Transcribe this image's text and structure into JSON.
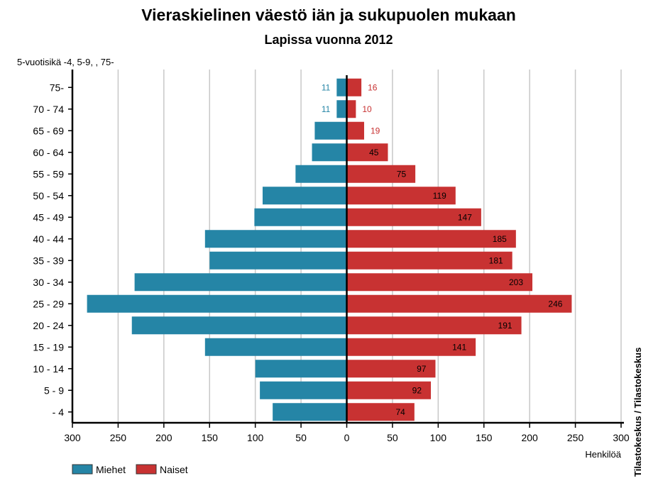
{
  "chart_data": {
    "type": "bar",
    "orientation": "horizontal-population-pyramid",
    "title": "Vieraskielinen väestö iän ja sukupuolen mukaan",
    "subtitle": "Lapissa vuonna 2012",
    "ylabel": "5-vuotisikä -4, 5-9, , 75-",
    "xlabel": "Henkilöä",
    "source": "Tilastokeskus / Tilastokeskus",
    "xlim": [
      -300,
      300
    ],
    "x_ticks": [
      -300,
      -250,
      -200,
      -150,
      -100,
      -50,
      0,
      50,
      100,
      150,
      200,
      250,
      300
    ],
    "x_tick_labels": [
      "300",
      "250",
      "200",
      "150",
      "100",
      "50",
      "0",
      "50",
      "100",
      "150",
      "200",
      "250",
      "300"
    ],
    "grid": true,
    "legend_position": "bottom-left",
    "categories": [
      "75-",
      "70 - 74",
      "65 - 69",
      "60 - 64",
      "55 - 59",
      "50 - 54",
      "45 - 49",
      "40 - 44",
      "35 - 39",
      "30 - 34",
      "25 - 29",
      "20 - 24",
      "15 - 19",
      "10 - 14",
      "5 - 9",
      "- 4"
    ],
    "series": [
      {
        "name": "Miehet",
        "color": "#2585a6",
        "values": [
          11,
          11,
          35,
          38,
          56,
          92,
          101,
          155,
          150,
          232,
          284,
          235,
          155,
          100,
          95,
          81
        ],
        "labels": [
          "11",
          "11",
          "",
          "",
          "",
          "",
          "",
          "",
          "",
          "",
          "",
          "",
          "",
          "",
          "",
          ""
        ]
      },
      {
        "name": "Naiset",
        "color": "#c83232",
        "values": [
          16,
          10,
          19,
          45,
          75,
          119,
          147,
          185,
          181,
          203,
          246,
          191,
          141,
          97,
          92,
          74
        ],
        "labels": [
          "16",
          "10",
          "19",
          "45",
          "75",
          "119",
          "147",
          "185",
          "181",
          "203",
          "246",
          "191",
          "141",
          "97",
          "92",
          "74"
        ]
      }
    ]
  }
}
